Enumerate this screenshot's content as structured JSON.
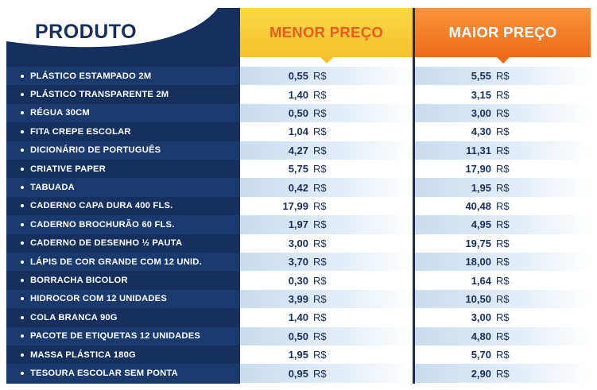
{
  "header": {
    "product_title": "PRODUTO",
    "menor_title": "MENOR PREÇO",
    "maior_title": "MAIOR PREÇO"
  },
  "currency": "R$",
  "colors": {
    "navy": "#15305f",
    "yellow": "#f6c22e",
    "orange": "#ef6a1c",
    "orange_text": "#e85c1e"
  },
  "rows": [
    {
      "product": "PLÁSTICO ESTAMPADO 2M",
      "menor": "0,55",
      "maior": "5,55"
    },
    {
      "product": "PLÁSTICO TRANSPARENTE 2M",
      "menor": "1,40",
      "maior": "3,15"
    },
    {
      "product": "RÉGUA 30CM",
      "menor": "0,50",
      "maior": "3,00"
    },
    {
      "product": "FITA CREPE ESCOLAR",
      "menor": "1,04",
      "maior": "4,30"
    },
    {
      "product": "DICIONÁRIO DE PORTUGUÊS",
      "menor": "4,27",
      "maior": "11,31"
    },
    {
      "product": "CRIATIVE PAPER",
      "menor": "5,75",
      "maior": "17,90"
    },
    {
      "product": "TABUADA",
      "menor": "0,42",
      "maior": "1,95"
    },
    {
      "product": "CADERNO CAPA DURA 400 FLS.",
      "menor": "17,99",
      "maior": "40,48"
    },
    {
      "product": "CADERNO BROCHURÃO 60 FLS.",
      "menor": "1,97",
      "maior": "4,95"
    },
    {
      "product": "CADERNO DE DESENHO ½ PAUTA",
      "menor": "3,00",
      "maior": "19,75"
    },
    {
      "product": "LÁPIS DE COR GRANDE COM 12 UNID.",
      "menor": "3,70",
      "maior": "18,00"
    },
    {
      "product": "BORRACHA BICOLOR",
      "menor": "0,30",
      "maior": "1,64"
    },
    {
      "product": "HIDROCOR COM 12 UNIDADES",
      "menor": "3,99",
      "maior": "10,50"
    },
    {
      "product": "COLA BRANCA 90G",
      "menor": "1,40",
      "maior": "3,00"
    },
    {
      "product": "PACOTE DE ETIQUETAS 12 UNIDADES",
      "menor": "0,50",
      "maior": "4,80"
    },
    {
      "product": "MASSA PLÁSTICA 180G",
      "menor": "1,95",
      "maior": "5,70"
    },
    {
      "product": "TESOURA ESCOLAR SEM PONTA",
      "menor": "0,95",
      "maior": "2,90"
    }
  ]
}
